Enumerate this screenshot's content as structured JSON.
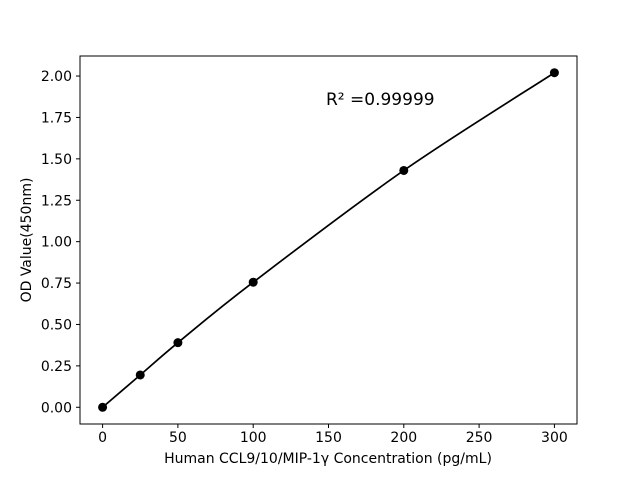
{
  "chart_data": {
    "type": "line",
    "series_name": "standard-curve",
    "x": [
      0,
      25,
      50,
      100,
      200,
      300
    ],
    "y": [
      0.0,
      0.195,
      0.39,
      0.755,
      1.43,
      2.02
    ],
    "xlabel": "Human CCL9/10/MIP-1γ Concentration (pg/mL)",
    "ylabel": "OD Value(450nm)",
    "annotation": {
      "text": "R² =0.99999",
      "x": 150,
      "y": 1.85
    },
    "xlim": [
      -15,
      315
    ],
    "ylim": [
      -0.101,
      2.121
    ],
    "xticks": [
      0,
      50,
      100,
      150,
      200,
      250,
      300
    ],
    "xtick_labels": [
      "0",
      "50",
      "100",
      "150",
      "200",
      "250",
      "300"
    ],
    "yticks": [
      0.0,
      0.25,
      0.5,
      0.75,
      1.0,
      1.25,
      1.5,
      1.75,
      2.0
    ],
    "ytick_labels": [
      "0.00",
      "0.25",
      "0.50",
      "0.75",
      "1.00",
      "1.25",
      "1.50",
      "1.75",
      "2.00"
    ],
    "grid": false,
    "legend": null,
    "line_color": "#000000",
    "marker_color": "#000000",
    "marker": "circle",
    "background_color": "#ffffff",
    "frame_color": "#000000"
  }
}
